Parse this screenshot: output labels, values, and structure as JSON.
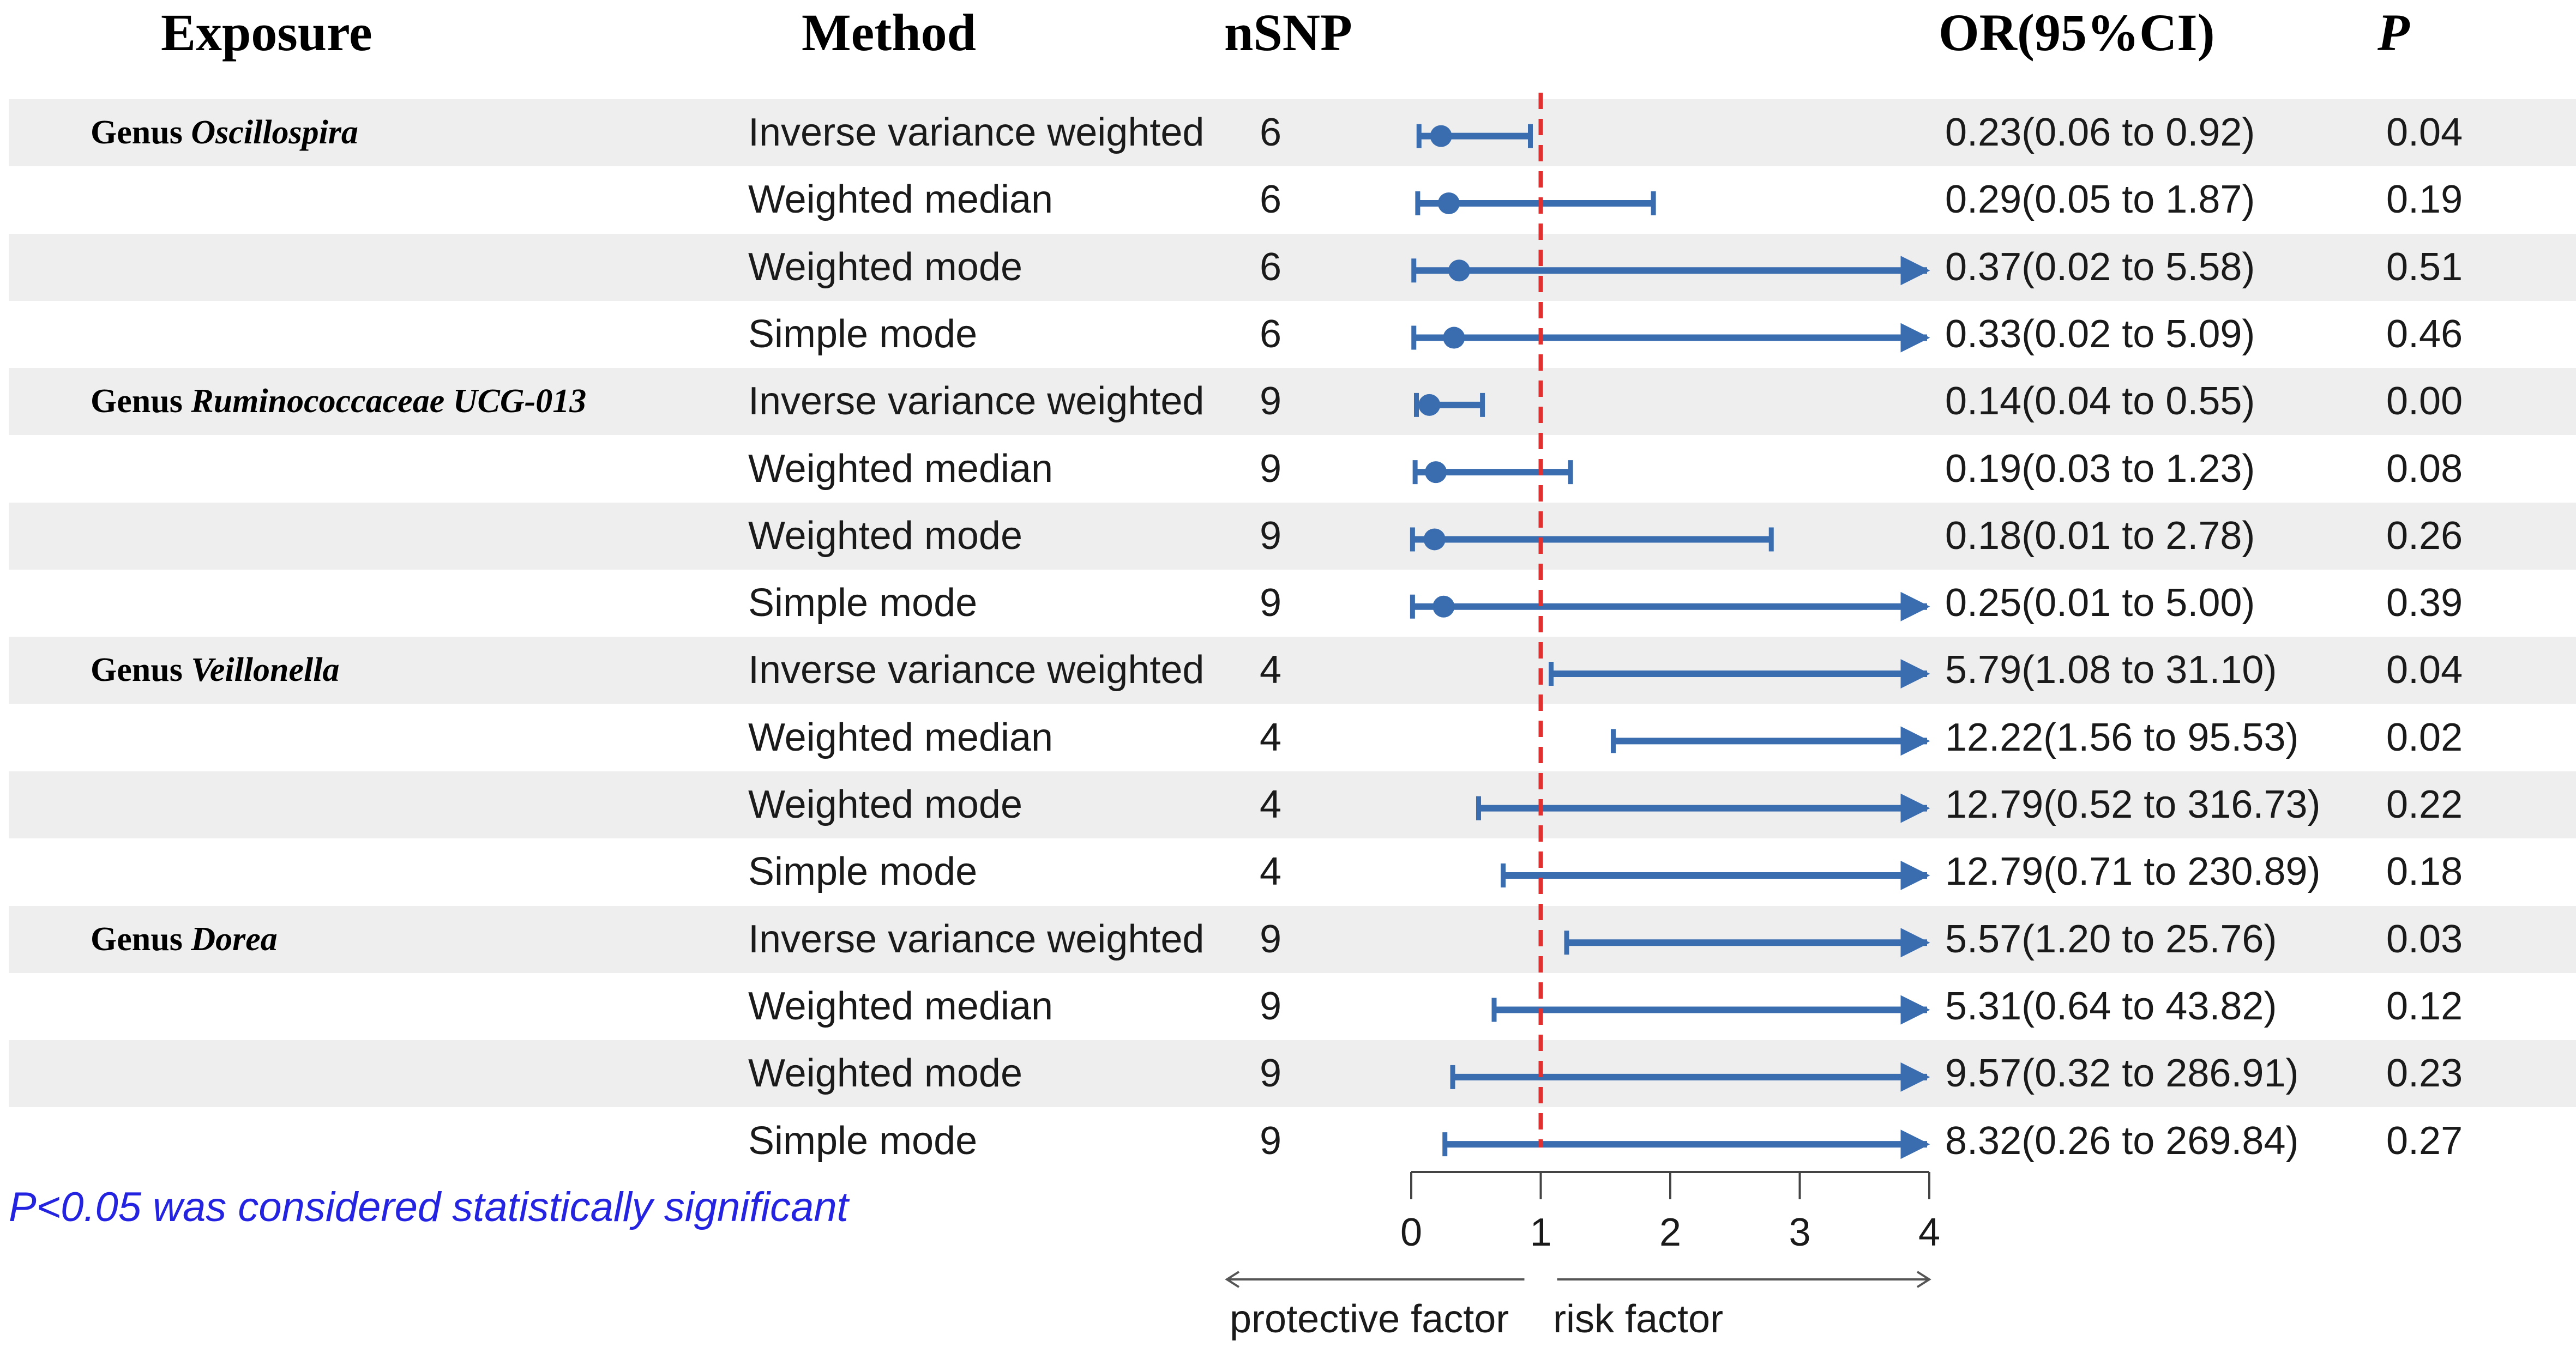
{
  "headers": {
    "exposure": "Exposure",
    "method": "Method",
    "nsnp": "nSNP",
    "or": "OR(95%CI)",
    "p": "P"
  },
  "groups": [
    {
      "prefix": "Genus ",
      "name": "Oscillospira"
    },
    {
      "prefix": "Genus ",
      "name": "Ruminococcaceae UCG-013"
    },
    {
      "prefix": "Genus ",
      "name": "Veillonella"
    },
    {
      "prefix": "Genus ",
      "name": "Dorea"
    }
  ],
  "rows": [
    {
      "method": "Inverse variance weighted",
      "nsnp": "6",
      "or_text": "0.23(0.06 to 0.92)",
      "p": "0.04"
    },
    {
      "method": "Weighted median",
      "nsnp": "6",
      "or_text": "0.29(0.05 to 1.87)",
      "p": "0.19"
    },
    {
      "method": "Weighted mode",
      "nsnp": "6",
      "or_text": "0.37(0.02 to 5.58)",
      "p": "0.51"
    },
    {
      "method": "Simple mode",
      "nsnp": "6",
      "or_text": "0.33(0.02 to 5.09)",
      "p": "0.46"
    },
    {
      "method": "Inverse variance weighted",
      "nsnp": "9",
      "or_text": "0.14(0.04 to 0.55)",
      "p": "0.00"
    },
    {
      "method": "Weighted median",
      "nsnp": "9",
      "or_text": "0.19(0.03 to 1.23)",
      "p": "0.08"
    },
    {
      "method": "Weighted mode",
      "nsnp": "9",
      "or_text": "0.18(0.01 to 2.78)",
      "p": "0.26"
    },
    {
      "method": "Simple mode",
      "nsnp": "9",
      "or_text": "0.25(0.01 to 5.00)",
      "p": "0.39"
    },
    {
      "method": "Inverse variance weighted",
      "nsnp": "4",
      "or_text": "5.79(1.08 to 31.10)",
      "p": "0.04"
    },
    {
      "method": "Weighted median",
      "nsnp": "4",
      "or_text": "12.22(1.56 to 95.53)",
      "p": "0.02"
    },
    {
      "method": "Weighted mode",
      "nsnp": "4",
      "or_text": "12.79(0.52 to 316.73)",
      "p": "0.22"
    },
    {
      "method": "Simple mode",
      "nsnp": "4",
      "or_text": "12.79(0.71 to 230.89)",
      "p": "0.18"
    },
    {
      "method": "Inverse variance weighted",
      "nsnp": "9",
      "or_text": "5.57(1.20 to 25.76)",
      "p": "0.03"
    },
    {
      "method": "Weighted median",
      "nsnp": "9",
      "or_text": "5.31(0.64 to 43.82)",
      "p": "0.12"
    },
    {
      "method": "Weighted mode",
      "nsnp": "9",
      "or_text": "9.57(0.32 to 286.91)",
      "p": "0.23"
    },
    {
      "method": "Simple mode",
      "nsnp": "9",
      "or_text": "8.32(0.26 to 269.84)",
      "p": "0.27"
    }
  ],
  "footnote": "P<0.05 was considered statistically significant",
  "x_labels": {
    "left": "protective factor",
    "right": "risk factor"
  },
  "colors": {
    "ci": "#3a6db0",
    "reference_line": "#e03030",
    "shade": "#eeeeee",
    "footnote": "#2424e0"
  },
  "chart_data": {
    "type": "forest",
    "xlim": [
      0,
      4
    ],
    "xticks": [
      0,
      1,
      2,
      3,
      4
    ],
    "xtick_labels": [
      "0",
      "1",
      "2",
      "3",
      "4"
    ],
    "reference_value": 1,
    "series": [
      {
        "name": "Genus Oscillospira",
        "method": "Inverse variance weighted",
        "or": 0.23,
        "lower": 0.06,
        "upper": 0.92
      },
      {
        "name": "Genus Oscillospira",
        "method": "Weighted median",
        "or": 0.29,
        "lower": 0.05,
        "upper": 1.87
      },
      {
        "name": "Genus Oscillospira",
        "method": "Weighted mode",
        "or": 0.37,
        "lower": 0.02,
        "upper": 5.58
      },
      {
        "name": "Genus Oscillospira",
        "method": "Simple mode",
        "or": 0.33,
        "lower": 0.02,
        "upper": 5.09
      },
      {
        "name": "Genus Ruminococcaceae UCG-013",
        "method": "Inverse variance weighted",
        "or": 0.14,
        "lower": 0.04,
        "upper": 0.55
      },
      {
        "name": "Genus Ruminococcaceae UCG-013",
        "method": "Weighted median",
        "or": 0.19,
        "lower": 0.03,
        "upper": 1.23
      },
      {
        "name": "Genus Ruminococcaceae UCG-013",
        "method": "Weighted mode",
        "or": 0.18,
        "lower": 0.01,
        "upper": 2.78
      },
      {
        "name": "Genus Ruminococcaceae UCG-013",
        "method": "Simple mode",
        "or": 0.25,
        "lower": 0.01,
        "upper": 5.0
      },
      {
        "name": "Genus Veillonella",
        "method": "Inverse variance weighted",
        "or": 5.79,
        "lower": 1.08,
        "upper": 31.1
      },
      {
        "name": "Genus Veillonella",
        "method": "Weighted median",
        "or": 12.22,
        "lower": 1.56,
        "upper": 95.53
      },
      {
        "name": "Genus Veillonella",
        "method": "Weighted mode",
        "or": 12.79,
        "lower": 0.52,
        "upper": 316.73
      },
      {
        "name": "Genus Veillonella",
        "method": "Simple mode",
        "or": 12.79,
        "lower": 0.71,
        "upper": 230.89
      },
      {
        "name": "Genus Dorea",
        "method": "Inverse variance weighted",
        "or": 5.57,
        "lower": 1.2,
        "upper": 25.76
      },
      {
        "name": "Genus Dorea",
        "method": "Weighted median",
        "or": 5.31,
        "lower": 0.64,
        "upper": 43.82
      },
      {
        "name": "Genus Dorea",
        "method": "Weighted mode",
        "or": 9.57,
        "lower": 0.32,
        "upper": 286.91
      },
      {
        "name": "Genus Dorea",
        "method": "Simple mode",
        "or": 8.32,
        "lower": 0.26,
        "upper": 269.84
      }
    ]
  }
}
